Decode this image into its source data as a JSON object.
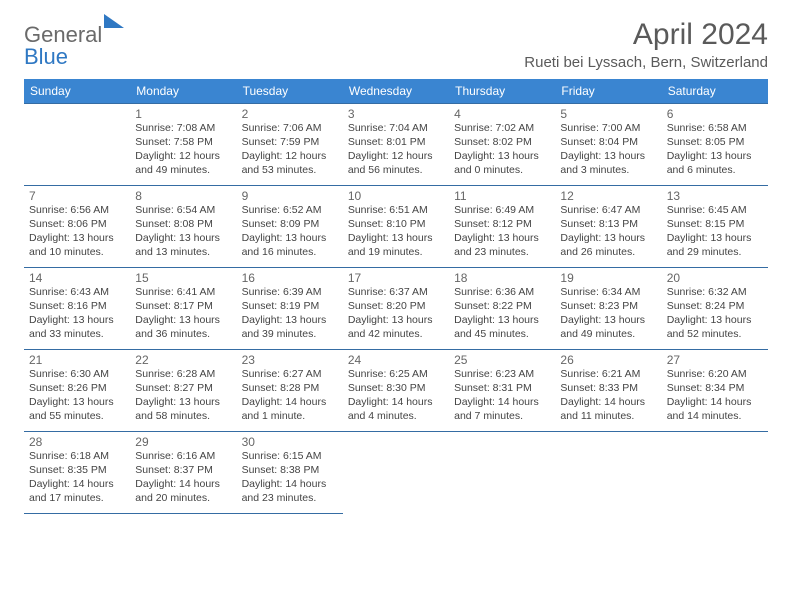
{
  "logo": {
    "line1": "General",
    "line2": "Blue"
  },
  "title": "April 2024",
  "location": "Rueti bei Lyssach, Bern, Switzerland",
  "colors": {
    "header_bg": "#3a85d1",
    "header_text": "#ffffff",
    "border": "#356ca3",
    "text": "#444444",
    "title": "#5a5a5a",
    "logo_gray": "#6a6a6a",
    "logo_blue": "#2f78c3"
  },
  "weekdays": [
    "Sunday",
    "Monday",
    "Tuesday",
    "Wednesday",
    "Thursday",
    "Friday",
    "Saturday"
  ],
  "weeks": [
    [
      null,
      {
        "n": "1",
        "sr": "7:08 AM",
        "ss": "7:58 PM",
        "dl": "12 hours and 49 minutes."
      },
      {
        "n": "2",
        "sr": "7:06 AM",
        "ss": "7:59 PM",
        "dl": "12 hours and 53 minutes."
      },
      {
        "n": "3",
        "sr": "7:04 AM",
        "ss": "8:01 PM",
        "dl": "12 hours and 56 minutes."
      },
      {
        "n": "4",
        "sr": "7:02 AM",
        "ss": "8:02 PM",
        "dl": "13 hours and 0 minutes."
      },
      {
        "n": "5",
        "sr": "7:00 AM",
        "ss": "8:04 PM",
        "dl": "13 hours and 3 minutes."
      },
      {
        "n": "6",
        "sr": "6:58 AM",
        "ss": "8:05 PM",
        "dl": "13 hours and 6 minutes."
      }
    ],
    [
      {
        "n": "7",
        "sr": "6:56 AM",
        "ss": "8:06 PM",
        "dl": "13 hours and 10 minutes."
      },
      {
        "n": "8",
        "sr": "6:54 AM",
        "ss": "8:08 PM",
        "dl": "13 hours and 13 minutes."
      },
      {
        "n": "9",
        "sr": "6:52 AM",
        "ss": "8:09 PM",
        "dl": "13 hours and 16 minutes."
      },
      {
        "n": "10",
        "sr": "6:51 AM",
        "ss": "8:10 PM",
        "dl": "13 hours and 19 minutes."
      },
      {
        "n": "11",
        "sr": "6:49 AM",
        "ss": "8:12 PM",
        "dl": "13 hours and 23 minutes."
      },
      {
        "n": "12",
        "sr": "6:47 AM",
        "ss": "8:13 PM",
        "dl": "13 hours and 26 minutes."
      },
      {
        "n": "13",
        "sr": "6:45 AM",
        "ss": "8:15 PM",
        "dl": "13 hours and 29 minutes."
      }
    ],
    [
      {
        "n": "14",
        "sr": "6:43 AM",
        "ss": "8:16 PM",
        "dl": "13 hours and 33 minutes."
      },
      {
        "n": "15",
        "sr": "6:41 AM",
        "ss": "8:17 PM",
        "dl": "13 hours and 36 minutes."
      },
      {
        "n": "16",
        "sr": "6:39 AM",
        "ss": "8:19 PM",
        "dl": "13 hours and 39 minutes."
      },
      {
        "n": "17",
        "sr": "6:37 AM",
        "ss": "8:20 PM",
        "dl": "13 hours and 42 minutes."
      },
      {
        "n": "18",
        "sr": "6:36 AM",
        "ss": "8:22 PM",
        "dl": "13 hours and 45 minutes."
      },
      {
        "n": "19",
        "sr": "6:34 AM",
        "ss": "8:23 PM",
        "dl": "13 hours and 49 minutes."
      },
      {
        "n": "20",
        "sr": "6:32 AM",
        "ss": "8:24 PM",
        "dl": "13 hours and 52 minutes."
      }
    ],
    [
      {
        "n": "21",
        "sr": "6:30 AM",
        "ss": "8:26 PM",
        "dl": "13 hours and 55 minutes."
      },
      {
        "n": "22",
        "sr": "6:28 AM",
        "ss": "8:27 PM",
        "dl": "13 hours and 58 minutes."
      },
      {
        "n": "23",
        "sr": "6:27 AM",
        "ss": "8:28 PM",
        "dl": "14 hours and 1 minute."
      },
      {
        "n": "24",
        "sr": "6:25 AM",
        "ss": "8:30 PM",
        "dl": "14 hours and 4 minutes."
      },
      {
        "n": "25",
        "sr": "6:23 AM",
        "ss": "8:31 PM",
        "dl": "14 hours and 7 minutes."
      },
      {
        "n": "26",
        "sr": "6:21 AM",
        "ss": "8:33 PM",
        "dl": "14 hours and 11 minutes."
      },
      {
        "n": "27",
        "sr": "6:20 AM",
        "ss": "8:34 PM",
        "dl": "14 hours and 14 minutes."
      }
    ],
    [
      {
        "n": "28",
        "sr": "6:18 AM",
        "ss": "8:35 PM",
        "dl": "14 hours and 17 minutes."
      },
      {
        "n": "29",
        "sr": "6:16 AM",
        "ss": "8:37 PM",
        "dl": "14 hours and 20 minutes."
      },
      {
        "n": "30",
        "sr": "6:15 AM",
        "ss": "8:38 PM",
        "dl": "14 hours and 23 minutes."
      },
      null,
      null,
      null,
      null
    ]
  ],
  "labels": {
    "sunrise": "Sunrise:",
    "sunset": "Sunset:",
    "daylight": "Daylight:"
  }
}
